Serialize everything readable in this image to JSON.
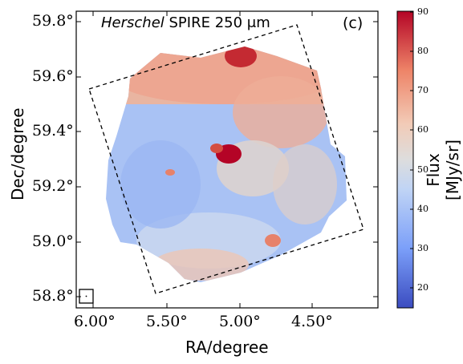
{
  "figure": {
    "title_italic": "Herschel",
    "title_rest": " SPIRE 250 μm",
    "panel_label": "(c)",
    "xlabel": "RA/degree",
    "ylabel": "Dec/degree",
    "x_ticks": [
      "6.00°",
      "5.50°",
      "5.00°",
      "4.50°"
    ],
    "y_ticks": [
      "59.8°",
      "59.6°",
      "59.4°",
      "59.2°",
      "59.0°",
      "58.8°"
    ],
    "colorbar": {
      "label": "Flux [MJy/sr]",
      "ticks": [
        "90",
        "80",
        "70",
        "60",
        "50",
        "40",
        "30",
        "20"
      ],
      "range": [
        15,
        90
      ],
      "colormap": [
        "#3b4cc0",
        "#7b9ff9",
        "#c0d4f5",
        "#dddddd",
        "#f2cbb7",
        "#ee8468",
        "#b40426"
      ]
    }
  }
}
